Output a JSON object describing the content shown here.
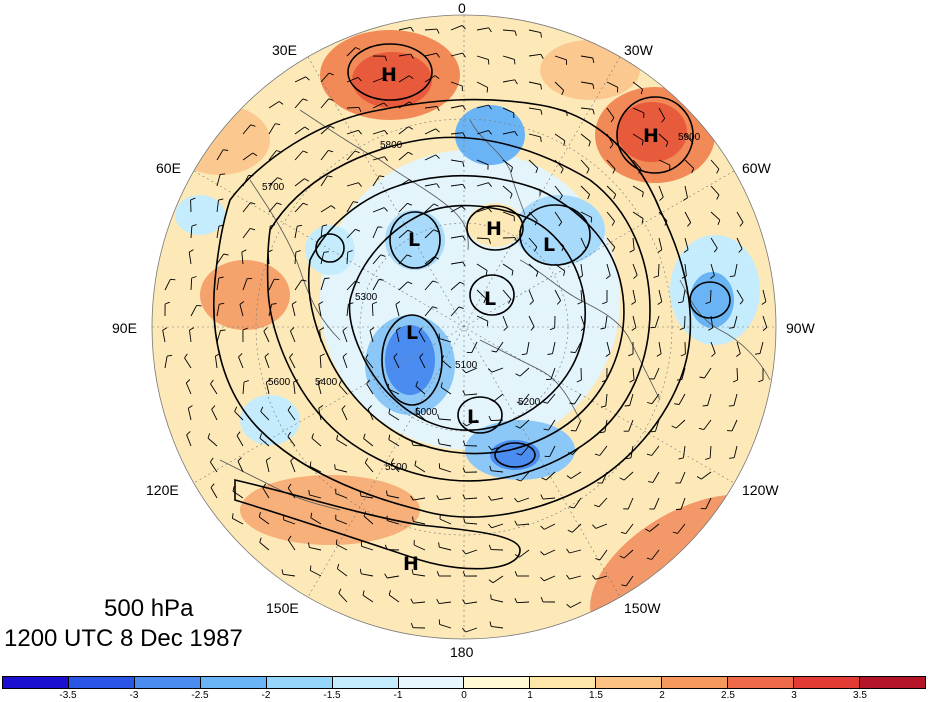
{
  "map": {
    "longitude_labels": {
      "lon_0": "0",
      "lon_30w": "30W",
      "lon_60w": "60W",
      "lon_90w": "90W",
      "lon_120w": "120W",
      "lon_150w": "150W",
      "lon_180": "180",
      "lon_150e": "150E",
      "lon_120e": "120E",
      "lon_90e": "90E",
      "lon_60e": "60E",
      "lon_30e": "30E"
    },
    "centers": [
      {
        "id": "h-ne-atlantic-north",
        "label": "H"
      },
      {
        "id": "h-north-atlantic",
        "label": "H"
      },
      {
        "id": "h-arctic",
        "label": "H"
      },
      {
        "id": "h-north-pacific",
        "label": "H"
      },
      {
        "id": "l-scandinavia",
        "label": "L"
      },
      {
        "id": "l-greenland",
        "label": "L"
      },
      {
        "id": "l-pole",
        "label": "L"
      },
      {
        "id": "l-siberia",
        "label": "L"
      },
      {
        "id": "l-alaska",
        "label": "L"
      }
    ],
    "contour_labels": [
      "5800",
      "5900",
      "5700",
      "5600",
      "5500",
      "5300",
      "5400",
      "5100",
      "5000",
      "5200"
    ],
    "colors": {
      "coast": "#555555",
      "contour": "#000000"
    }
  },
  "caption": {
    "level": "500 hPa",
    "time": "1200 UTC 8 Dec 1987"
  },
  "colorbar": {
    "colors": [
      "#1c10d0",
      "#2a55e6",
      "#4a8cf0",
      "#6ab4f5",
      "#96d6fb",
      "#c4ecfc",
      "#e6f6fc",
      "#fffad6",
      "#fde6a8",
      "#fbc283",
      "#f5995f",
      "#ef6a48",
      "#e23a35",
      "#b41428"
    ],
    "tick_labels": [
      "-3.5",
      "-3",
      "-2.5",
      "-2",
      "-1.5",
      "-1",
      "0",
      "1",
      "1.5",
      "2",
      "2.5",
      "3",
      "3.5"
    ]
  }
}
